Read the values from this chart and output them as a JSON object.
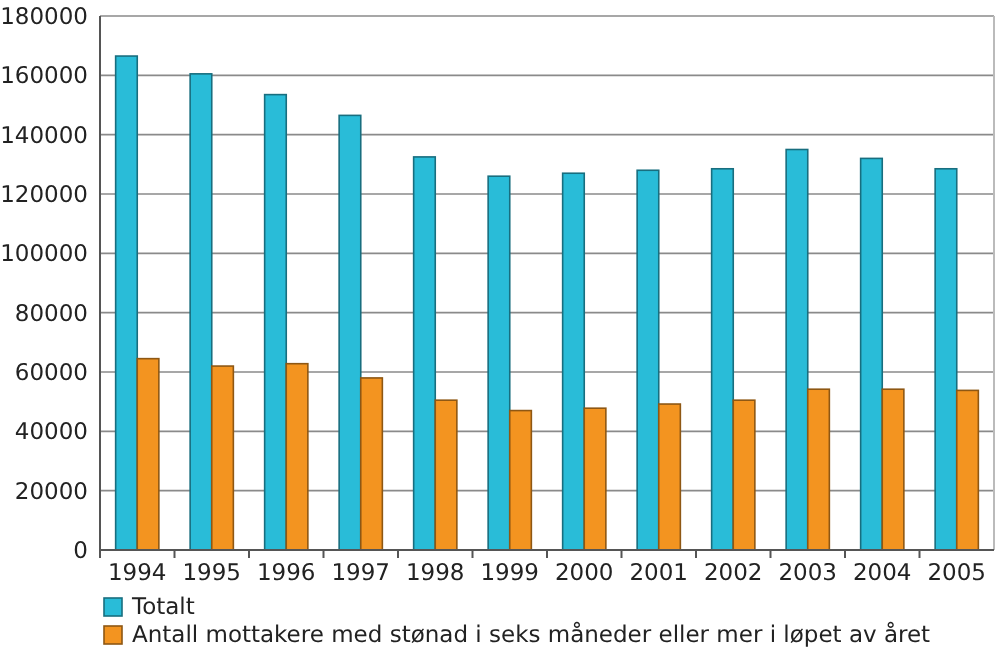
{
  "chart_data": {
    "type": "bar",
    "categories": [
      "1994",
      "1995",
      "1996",
      "1997",
      "1998",
      "1999",
      "2000",
      "2001",
      "2002",
      "2003",
      "2004",
      "2005"
    ],
    "series": [
      {
        "name": "Totalt",
        "color": "#29bcd8",
        "values": [
          166500,
          160500,
          153500,
          146500,
          132500,
          126000,
          127000,
          128000,
          128500,
          135000,
          132000,
          128500
        ]
      },
      {
        "name": "Antall mottakere med stønad i seks måneder eller mer i løpet av året",
        "color": "#f39420",
        "values": [
          64500,
          62000,
          62800,
          58000,
          50500,
          47000,
          47800,
          49200,
          50500,
          54200,
          54200,
          53800
        ]
      }
    ],
    "ylim": [
      0,
      180000
    ],
    "yticks": [
      0,
      20000,
      40000,
      60000,
      80000,
      100000,
      120000,
      140000,
      160000,
      180000
    ],
    "grid": "y",
    "legend": "bottom left"
  }
}
